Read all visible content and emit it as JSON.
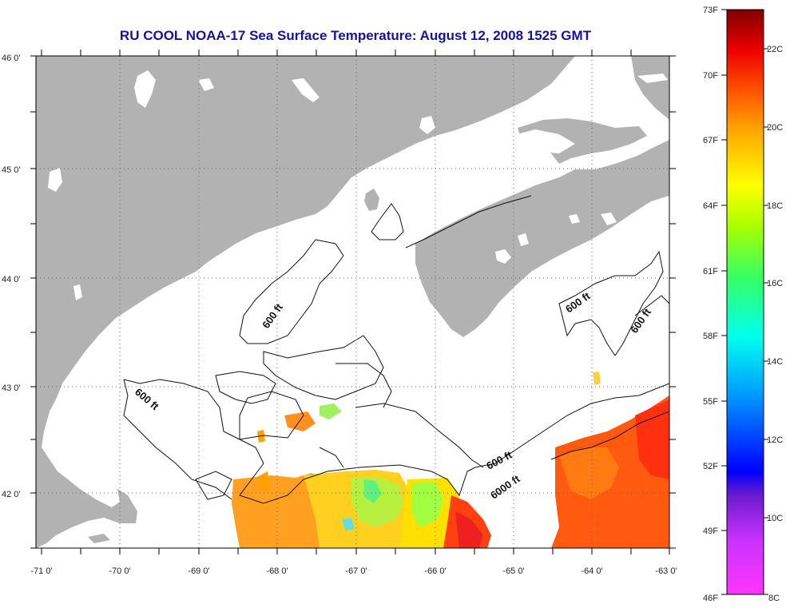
{
  "title": "RU COOL  NOAA-17  Sea Surface Temperature:  August 12, 2008 1525 GMT",
  "map": {
    "lat_labels": [
      "46 0'",
      "45 0'",
      "44 0'",
      "43 0'",
      "42 0'"
    ],
    "lon_labels": [
      "-71 0'",
      "-70 0'",
      "-69 0'",
      "-68 0'",
      "-67 0'",
      "-66 0'",
      "-65 0'",
      "-64 0'",
      "-63 0'"
    ],
    "contour_labels": [
      "600 ft",
      "600 ft",
      "600 ft",
      "600 ft",
      "600 ft",
      "6000 ft"
    ],
    "land_color": "#b2b2b2",
    "ocean_color": "#ffffff"
  },
  "colorbar": {
    "fahrenheit_labels": [
      "73F",
      "70F",
      "67F",
      "64F",
      "61F",
      "58F",
      "55F",
      "52F",
      "49F",
      "46F"
    ],
    "celsius_labels": [
      "22C",
      "20C",
      "18C",
      "16C",
      "14C",
      "12C",
      "10C",
      "8C"
    ],
    "colors": [
      "#ff33ff",
      "#8a2be2",
      "#0000ff",
      "#00bfff",
      "#00ffcc",
      "#33ff33",
      "#ffff00",
      "#ffa500",
      "#ff3300",
      "#cc0000",
      "#800000"
    ]
  }
}
